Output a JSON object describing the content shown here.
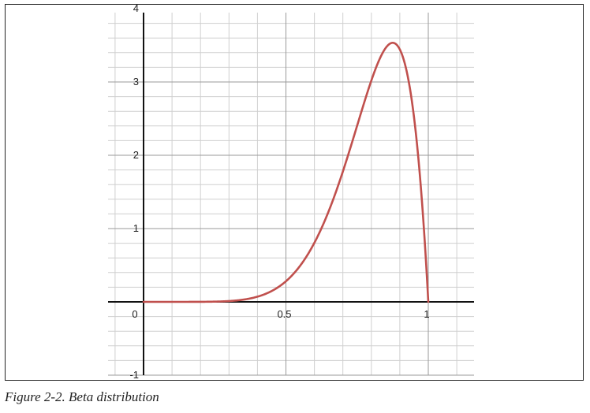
{
  "caption": "Figure 2-2. Beta distribution",
  "colors": {
    "curve": "#c0504d",
    "axis": "#111111",
    "grid_major": "#9a9a9a",
    "grid_minor": "#cfcfcf"
  },
  "chart_data": {
    "type": "line",
    "title": "",
    "xlabel": "",
    "ylabel": "",
    "xlim": [
      0,
      1.16
    ],
    "ylim": [
      -1,
      4
    ],
    "grid": true,
    "x_ticks": [
      {
        "value": 0,
        "label": "0"
      },
      {
        "value": 0.5,
        "label": "0.5"
      },
      {
        "value": 1,
        "label": "1"
      }
    ],
    "y_ticks": [
      {
        "value": -1,
        "label": "-1"
      },
      {
        "value": 1,
        "label": "1"
      },
      {
        "value": 2,
        "label": "2"
      },
      {
        "value": 3,
        "label": "3"
      },
      {
        "value": 4,
        "label": "4"
      }
    ],
    "series": [
      {
        "distribution": "beta",
        "alpha": 8,
        "beta": 2,
        "x": [
          0,
          0.1,
          0.2,
          0.3,
          0.35,
          0.4,
          0.45,
          0.5,
          0.55,
          0.6,
          0.65,
          0.7,
          0.75,
          0.8,
          0.85,
          0.875,
          0.9,
          0.95,
          0.98,
          1
        ],
        "y": [
          0,
          0,
          0.001,
          0.016,
          0.042,
          0.094,
          0.19,
          0.352,
          0.603,
          0.967,
          1.458,
          2.075,
          2.803,
          3.523,
          3.995,
          4.027,
          3.874,
          2.793,
          1.252,
          0
        ]
      }
    ]
  }
}
